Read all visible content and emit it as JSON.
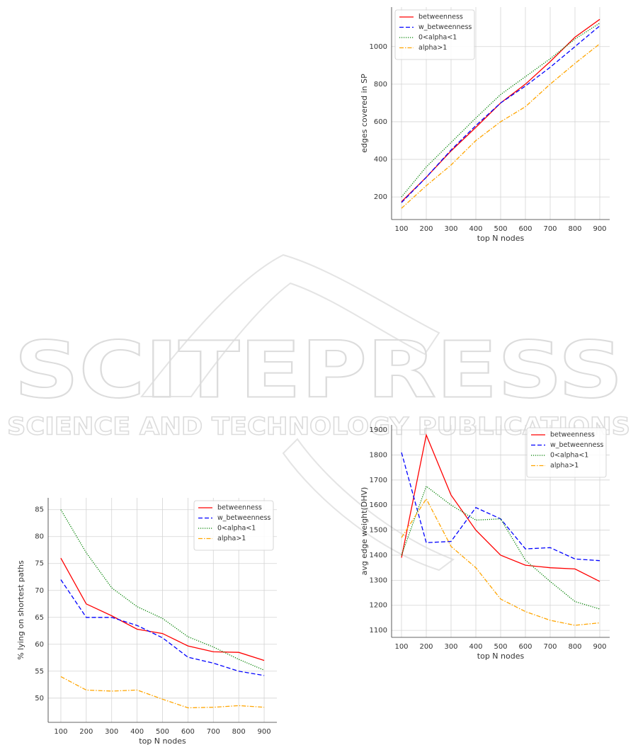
{
  "watermark": {
    "title": "SCITEPRESS",
    "subtitle": "SCIENCE AND TECHNOLOGY PUBLICATIONS"
  },
  "chart_data": [
    {
      "type": "line",
      "xlabel": "top N nodes",
      "ylabel": "edges covered in SP",
      "x": [
        100,
        200,
        300,
        400,
        500,
        600,
        700,
        800,
        900
      ],
      "xlim": [
        60,
        940
      ],
      "xticks": [
        100,
        200,
        300,
        400,
        500,
        600,
        700,
        800,
        900
      ],
      "ylim": [
        80,
        1210
      ],
      "yticks": [
        200,
        400,
        600,
        800,
        1000
      ],
      "grid": true,
      "legend": "upper left",
      "series": [
        {
          "name": "betweenness",
          "color": "#ff0000",
          "linestyle": "solid",
          "values": [
            175,
            305,
            445,
            570,
            700,
            800,
            920,
            1050,
            1145
          ]
        },
        {
          "name": "w_betweenness",
          "color": "#0000ff",
          "linestyle": "dashed",
          "values": [
            170,
            305,
            450,
            580,
            700,
            790,
            890,
            1000,
            1110
          ]
        },
        {
          "name": "0<alpha<1",
          "color": "#008000",
          "linestyle": "dotted",
          "values": [
            200,
            360,
            490,
            620,
            745,
            840,
            935,
            1040,
            1125
          ]
        },
        {
          "name": "alpha>1",
          "color": "#ffa500",
          "linestyle": "dashdot",
          "values": [
            140,
            260,
            370,
            500,
            600,
            680,
            800,
            910,
            1015
          ]
        }
      ]
    },
    {
      "type": "line",
      "xlabel": "top N nodes",
      "ylabel": "% lying on shortest paths",
      "x": [
        100,
        200,
        300,
        400,
        500,
        600,
        700,
        800,
        900
      ],
      "xlim": [
        50,
        950
      ],
      "xticks": [
        100,
        200,
        300,
        400,
        500,
        600,
        700,
        800,
        900
      ],
      "ylim": [
        45.5,
        87.2
      ],
      "yticks": [
        50,
        55,
        60,
        65,
        70,
        75,
        80,
        85
      ],
      "grid": true,
      "legend": "upper right",
      "series": [
        {
          "name": "betweenness",
          "color": "#ff0000",
          "linestyle": "solid",
          "values": [
            76,
            67.5,
            65.3,
            62.8,
            62,
            59.7,
            58.6,
            58.5,
            57
          ]
        },
        {
          "name": "w_betweenness",
          "color": "#0000ff",
          "linestyle": "dashed",
          "values": [
            72,
            65,
            65,
            63.5,
            61.2,
            57.6,
            56.5,
            55,
            54.2
          ]
        },
        {
          "name": "0<alpha<1",
          "color": "#008000",
          "linestyle": "dotted",
          "values": [
            85,
            77,
            70.5,
            67,
            64.8,
            61.4,
            59.5,
            57.2,
            55.2
          ]
        },
        {
          "name": "alpha>1",
          "color": "#ffa500",
          "linestyle": "dashdot",
          "values": [
            54,
            51.5,
            51.3,
            51.5,
            49.8,
            48.2,
            48.3,
            48.6,
            48.3
          ]
        }
      ]
    },
    {
      "type": "line",
      "xlabel": "top N nodes",
      "ylabel": "avg edge weight(DHV)",
      "x": [
        100,
        200,
        300,
        400,
        500,
        600,
        700,
        800,
        900
      ],
      "xlim": [
        60,
        940
      ],
      "xticks": [
        100,
        200,
        300,
        400,
        500,
        600,
        700,
        800,
        900
      ],
      "ylim": [
        1072,
        1920
      ],
      "yticks": [
        1100,
        1200,
        1300,
        1400,
        1500,
        1600,
        1700,
        1800,
        1900
      ],
      "grid": true,
      "legend": "upper right",
      "series": [
        {
          "name": "betweenness",
          "color": "#ff0000",
          "linestyle": "solid",
          "values": [
            1390,
            1880,
            1640,
            1500,
            1400,
            1360,
            1350,
            1345,
            1295
          ]
        },
        {
          "name": "w_betweenness",
          "color": "#0000ff",
          "linestyle": "dashed",
          "values": [
            1810,
            1450,
            1455,
            1590,
            1545,
            1425,
            1430,
            1385,
            1378
          ]
        },
        {
          "name": "0<alpha<1",
          "color": "#008000",
          "linestyle": "dotted",
          "values": [
            1400,
            1675,
            1600,
            1540,
            1545,
            1380,
            1295,
            1215,
            1185
          ]
        },
        {
          "name": "alpha>1",
          "color": "#ffa500",
          "linestyle": "dashdot",
          "values": [
            1470,
            1625,
            1435,
            1350,
            1225,
            1175,
            1140,
            1120,
            1130
          ]
        }
      ]
    }
  ]
}
